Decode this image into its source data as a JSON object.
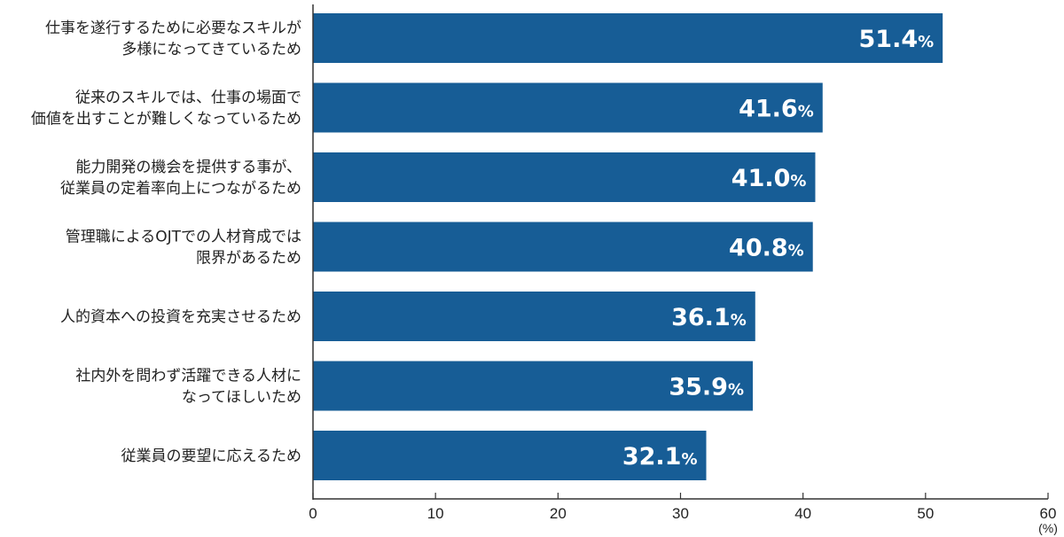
{
  "chart_data": {
    "type": "bar",
    "orientation": "horizontal",
    "categories": [
      [
        "仕事を遂行するために必要なスキルが",
        "多様になってきているため"
      ],
      [
        "従来のスキルでは、仕事の場面で",
        "価値を出すことが難しくなっているため"
      ],
      [
        "能力開発の機会を提供する事が、",
        "従業員の定着率向上につながるため"
      ],
      [
        "管理職によるOJTでの人材育成では",
        "限界があるため"
      ],
      [
        "人的資本への投資を充実させるため"
      ],
      [
        "社内外を問わず活躍できる人材に",
        "なってほしいため"
      ],
      [
        "従業員の要望に応えるため"
      ]
    ],
    "values": [
      51.4,
      41.6,
      41.0,
      40.8,
      36.1,
      35.9,
      32.1
    ],
    "value_labels": [
      "51.4",
      "41.6",
      "41.0",
      "40.8",
      "36.1",
      "35.9",
      "32.1"
    ],
    "value_suffix": "%",
    "xlim": [
      0,
      60
    ],
    "x_ticks": [
      "0",
      "10",
      "20",
      "30",
      "40",
      "50",
      "60"
    ],
    "x_unit": "(%)",
    "grid": false,
    "bar_color": "#175d96",
    "axis_color": "#333333"
  }
}
